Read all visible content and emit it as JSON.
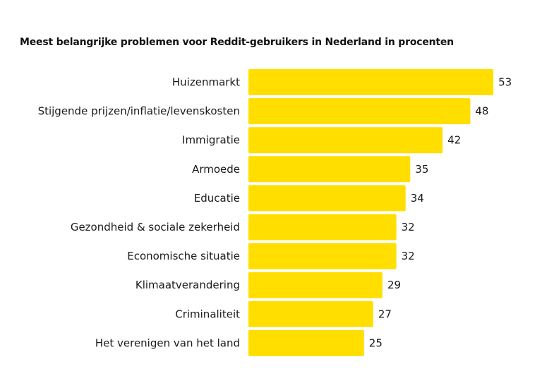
{
  "chart_data": {
    "type": "bar",
    "orientation": "horizontal",
    "title": "Meest belangrijke problemen voor Reddit-gebruikers in Nederland in procenten",
    "categories": [
      "Huizenmarkt",
      "Stijgende prijzen/inflatie/levenskosten",
      "Immigratie",
      "Armoede",
      "Educatie",
      "Gezondheid & sociale zekerheid",
      "Economische situatie",
      "Klimaatverandering",
      "Criminaliteit",
      "Het verenigen van het land"
    ],
    "values": [
      53,
      48,
      42,
      35,
      34,
      32,
      32,
      29,
      27,
      25
    ],
    "data_labels": [
      "53",
      "48",
      "42",
      "35",
      "34",
      "32",
      "32",
      "29",
      "27",
      "25"
    ],
    "bar_color": "#FFDE00",
    "grid": false,
    "legend": "none"
  }
}
